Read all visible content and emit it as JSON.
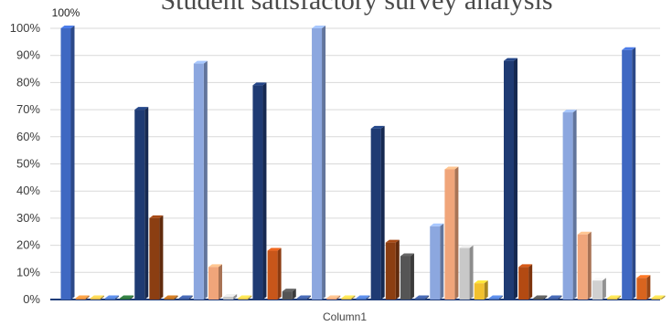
{
  "chart_data": {
    "type": "bar",
    "title": "Student satisfactory survey analysis",
    "xlabel": "Column1",
    "ylabel": "",
    "ylim": [
      0,
      100
    ],
    "yticks": [
      "0%",
      "10%",
      "20%",
      "30%",
      "40%",
      "50%",
      "60%",
      "70%",
      "80%",
      "90%",
      "100%"
    ],
    "grid": true,
    "data_labels": [
      {
        "text": "100%",
        "bar": 0
      }
    ],
    "bars": [
      {
        "value": 100,
        "color": "#3f68c2"
      },
      {
        "value": 0,
        "color": "#e08a3c"
      },
      {
        "value": 0,
        "color": "#e0b84a"
      },
      {
        "value": 0,
        "color": "#4f79c7"
      },
      {
        "value": 0,
        "color": "#2d6f3a"
      },
      {
        "value": 70,
        "color": "#1f3b73"
      },
      {
        "value": 30,
        "color": "#8b3e12"
      },
      {
        "value": 0,
        "color": "#b26a20"
      },
      {
        "value": 0,
        "color": "#3d5a9a"
      },
      {
        "value": 87,
        "color": "#8ca7df"
      },
      {
        "value": 12,
        "color": "#f0a57a"
      },
      {
        "value": 1,
        "color": "#c8c8c8"
      },
      {
        "value": 0,
        "color": "#e6c34a"
      },
      {
        "value": 79,
        "color": "#1f3b73"
      },
      {
        "value": 18,
        "color": "#c8561a"
      },
      {
        "value": 3,
        "color": "#555555"
      },
      {
        "value": 0,
        "color": "#3d5a9a"
      },
      {
        "value": 100,
        "color": "#8ca7df"
      },
      {
        "value": 0,
        "color": "#f0a57a"
      },
      {
        "value": 0,
        "color": "#e6c34a"
      },
      {
        "value": 0,
        "color": "#4f79c7"
      },
      {
        "value": 63,
        "color": "#1f3b73"
      },
      {
        "value": 21,
        "color": "#8b3e12"
      },
      {
        "value": 16,
        "color": "#555555"
      },
      {
        "value": 0,
        "color": "#3d5a9a"
      },
      {
        "value": 27,
        "color": "#8ca7df"
      },
      {
        "value": 48,
        "color": "#f0a57a"
      },
      {
        "value": 19,
        "color": "#c8c8c8"
      },
      {
        "value": 6,
        "color": "#f2c12e"
      },
      {
        "value": 0,
        "color": "#4f79c7"
      },
      {
        "value": 88,
        "color": "#1f3b73"
      },
      {
        "value": 12,
        "color": "#b34a12"
      },
      {
        "value": 0,
        "color": "#555555"
      },
      {
        "value": 0,
        "color": "#3d5a9a"
      },
      {
        "value": 69,
        "color": "#8ca7df"
      },
      {
        "value": 24,
        "color": "#f0a57a"
      },
      {
        "value": 7,
        "color": "#d0d0d0"
      },
      {
        "value": 0,
        "color": "#e6c34a"
      },
      {
        "value": 92,
        "color": "#3f68c2"
      },
      {
        "value": 8,
        "color": "#d8641f"
      },
      {
        "value": 0,
        "color": "#e6c34a"
      }
    ]
  }
}
